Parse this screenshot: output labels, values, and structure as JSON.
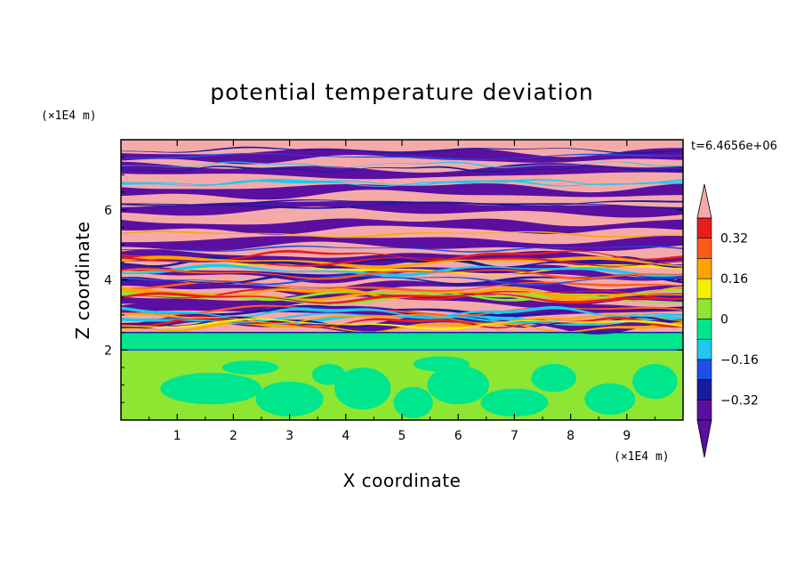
{
  "chart_data": {
    "type": "heatmap",
    "title": "potential temperature deviation",
    "xlabel": "X coordinate",
    "ylabel": "Z coordinate",
    "x_unit": "(×1E4 m)",
    "y_unit": "(×1E4 m)",
    "xlim": [
      0,
      10
    ],
    "ylim": [
      0,
      8
    ],
    "x_ticks": [
      1,
      2,
      3,
      4,
      5,
      6,
      7,
      8,
      9
    ],
    "x_tick_labels": [
      "1",
      "2",
      "3",
      "4",
      "5",
      "6",
      "7",
      "8",
      "9"
    ],
    "y_ticks": [
      2,
      4,
      6
    ],
    "y_tick_labels": [
      "2",
      "4",
      "6"
    ],
    "time_label": "t=6.4656e+06",
    "colorbar": {
      "levels": [
        -0.4,
        -0.32,
        -0.24,
        -0.16,
        -0.08,
        0,
        0.08,
        0.16,
        0.24,
        0.32,
        0.4
      ],
      "colors": [
        "#5a0fa0",
        "#1a1a9e",
        "#1e50e6",
        "#1ec8f0",
        "#00e68c",
        "#8ce632",
        "#f5f000",
        "#ffa500",
        "#ff5a1e",
        "#e61e1e",
        "#f5aaaa"
      ],
      "under_color": "#5a0fa0",
      "over_color": "#f5aaaa",
      "label_values": [
        0.32,
        0.16,
        0,
        -0.16,
        -0.32
      ],
      "labels": [
        "0.32",
        "0.16",
        "0",
        "−0.16",
        "−0.32"
      ],
      "extend": "both"
    },
    "regions": {
      "lower_layer_z": [
        0,
        2.0
      ],
      "lower_layer_colors": [
        "#8ce632",
        "#00e68c"
      ],
      "mixed_band_z": [
        2.0,
        2.5
      ],
      "stratified_layer_z": [
        2.5,
        8.0
      ],
      "stratified_colors": [
        "#f5aaaa",
        "#5a0fa0"
      ]
    }
  }
}
